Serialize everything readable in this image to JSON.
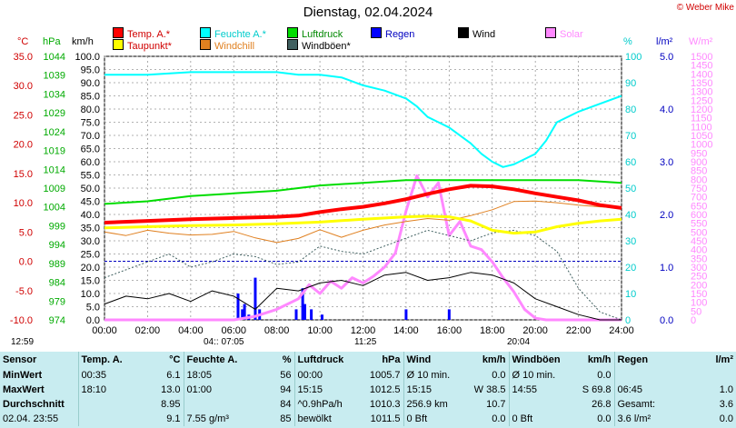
{
  "title": "Dienstag, 02.04.2024",
  "copyright": "© Weber Mike",
  "legend": [
    {
      "label": "Temp. A.*",
      "color": "#ff0000",
      "col": 0,
      "row": 0
    },
    {
      "label": "Feuchte A.*",
      "color": "#00ffff",
      "col": 1,
      "row": 0
    },
    {
      "label": "Luftdruck",
      "color": "#00dd00",
      "col": 2,
      "row": 0
    },
    {
      "label": "Regen",
      "color": "#0000ff",
      "col": 3,
      "row": 0
    },
    {
      "label": "Wind",
      "color": "#000000",
      "col": 4,
      "row": 0
    },
    {
      "label": "Solar",
      "color": "#ff88ff",
      "col": 5,
      "row": 0
    },
    {
      "label": "Taupunkt*",
      "color": "#ffff00",
      "col": 0,
      "row": 1
    },
    {
      "label": "Windchill",
      "color": "#e08020",
      "col": 1,
      "row": 1
    },
    {
      "label": "Windböen*",
      "color": "#406060",
      "col": 2,
      "row": 1
    }
  ],
  "units": {
    "temp": "°C",
    "press": "hPa",
    "wind": "km/h",
    "hum": "%",
    "rain": "l/m²",
    "solar": "W/m²"
  },
  "sun": {
    "left_time": "12:59",
    "rise_label": "04::  07:05",
    "noon_label": "11:25",
    "set_label": "20:04"
  },
  "chart_data": {
    "type": "line",
    "x_ticks": [
      "00:00",
      "02:00",
      "04:00",
      "06:00",
      "08:00",
      "10:00",
      "12:00",
      "14:00",
      "16:00",
      "18:00",
      "20:00",
      "22:00",
      "24:00"
    ],
    "axes": {
      "temp": {
        "min": -10.0,
        "max": 35.0,
        "step": 5.0,
        "ticks": [
          "-10.0",
          "-5.0",
          "0.0",
          "5.0",
          "10.0",
          "15.0",
          "20.0",
          "25.0",
          "30.0",
          "35.0"
        ]
      },
      "press": {
        "ticks": [
          "974",
          "979",
          "984",
          "989",
          "994",
          "999",
          "1004",
          "1009",
          "1014",
          "1019",
          "1024",
          "1029",
          "1034",
          "1039",
          "1044"
        ]
      },
      "wind": {
        "min": 0.0,
        "max": 100.0,
        "ticks": [
          "0.0",
          "5.0",
          "10.0",
          "15.0",
          "20.0",
          "25.0",
          "30.0",
          "35.0",
          "40.0",
          "45.0",
          "50.0",
          "55.0",
          "60.0",
          "65.0",
          "70.0",
          "75.0",
          "80.0",
          "85.0",
          "90.0",
          "95.0",
          "100.0"
        ]
      },
      "hum": {
        "min": 0,
        "max": 100,
        "ticks": [
          "0",
          "10",
          "20",
          "30",
          "40",
          "50",
          "60",
          "70",
          "80",
          "90",
          "100"
        ]
      },
      "rain": {
        "min": 0.0,
        "max": 5.0,
        "ticks": [
          "0.0",
          "1.0",
          "2.0",
          "3.0",
          "4.0",
          "5.0"
        ]
      },
      "solar": {
        "min": 0,
        "max": 1500,
        "ticks": [
          "0",
          "50",
          "100",
          "150",
          "200",
          "250",
          "300",
          "350",
          "400",
          "450",
          "500",
          "550",
          "600",
          "650",
          "700",
          "750",
          "800",
          "850",
          "900",
          "950",
          "1000",
          "1050",
          "1100",
          "1150",
          "1200",
          "1250",
          "1300",
          "1350",
          "1400",
          "1450",
          "1500"
        ]
      }
    },
    "series": [
      {
        "name": "Temp. A.*",
        "axis": "temp",
        "color": "#ff0000",
        "width": 4,
        "x": [
          0,
          2,
          4,
          6,
          8,
          9,
          10,
          11,
          12,
          13,
          14,
          15,
          16,
          17,
          18,
          19,
          20,
          21,
          22,
          23,
          24
        ],
        "y": [
          6.6,
          6.9,
          7.2,
          7.4,
          7.6,
          7.8,
          8.4,
          8.9,
          9.3,
          9.9,
          10.6,
          11.5,
          12.3,
          12.9,
          12.8,
          12.3,
          11.6,
          11.0,
          10.4,
          9.6,
          9.1
        ]
      },
      {
        "name": "Feuchte A.*",
        "axis": "hum",
        "color": "#00ffff",
        "width": 2,
        "x": [
          0,
          2,
          4,
          6,
          8,
          9,
          10,
          11,
          12,
          13,
          14,
          14.5,
          15,
          15.5,
          16,
          17,
          17.5,
          18,
          18.5,
          19,
          19.5,
          20,
          20.5,
          21,
          22,
          23,
          24
        ],
        "y": [
          93,
          93,
          94,
          94,
          94,
          93,
          93,
          92,
          89,
          87,
          84,
          81,
          77,
          75,
          73,
          67,
          63,
          60,
          58,
          59,
          61,
          63,
          68,
          75,
          79,
          82,
          85
        ]
      },
      {
        "name": "Luftdruck",
        "axis": "hum",
        "color": "#00dd00",
        "width": 2,
        "x": [
          0,
          2,
          4,
          6,
          8,
          10,
          12,
          14,
          15,
          16,
          18,
          20,
          22,
          24
        ],
        "y": [
          44,
          45,
          47,
          48,
          49,
          51,
          52,
          53,
          53,
          53,
          53,
          53,
          53,
          52
        ]
      },
      {
        "name": "Taupunkt*",
        "axis": "temp",
        "color": "#ffff00",
        "width": 3,
        "x": [
          0,
          2,
          4,
          6,
          8,
          10,
          12,
          14,
          15,
          16,
          17,
          18,
          19,
          20,
          21,
          22,
          23,
          24
        ],
        "y": [
          5.7,
          5.9,
          6.1,
          6.2,
          6.4,
          6.7,
          7.2,
          7.6,
          7.7,
          7.6,
          6.9,
          5.3,
          4.8,
          5.0,
          5.9,
          6.5,
          6.9,
          7.2
        ]
      },
      {
        "name": "Windchill",
        "axis": "temp",
        "color": "#e08020",
        "width": 1,
        "x": [
          0,
          1,
          2,
          3,
          4,
          5,
          6,
          7,
          8,
          9,
          10,
          11,
          12,
          13,
          14,
          15,
          16,
          17,
          18,
          19,
          20,
          21,
          22,
          23,
          24
        ],
        "y": [
          5.0,
          4.4,
          5.3,
          4.8,
          4.5,
          4.6,
          5.1,
          4.0,
          3.2,
          3.9,
          5.4,
          4.1,
          5.3,
          6.2,
          6.8,
          7.3,
          7.0,
          7.8,
          8.8,
          10.2,
          10.3,
          10.0,
          9.6,
          9.3,
          9.1
        ]
      },
      {
        "name": "Windböen*",
        "axis": "wind",
        "color": "#406060",
        "width": 1,
        "dash": true,
        "x": [
          0,
          1,
          2,
          3,
          4,
          5,
          6,
          7,
          8,
          9,
          10,
          11,
          12,
          13,
          14,
          15,
          16,
          17,
          18,
          19,
          20,
          21,
          22,
          23,
          24
        ],
        "y": [
          16,
          19,
          22,
          25,
          20,
          22,
          25,
          24,
          21,
          22,
          28,
          26,
          25,
          28,
          31,
          34,
          32,
          30,
          33,
          34,
          32,
          26,
          12,
          3,
          0
        ]
      },
      {
        "name": "Wind",
        "axis": "wind",
        "color": "#000000",
        "width": 1,
        "x": [
          0,
          1,
          2,
          3,
          4,
          5,
          6,
          7,
          8,
          9,
          10,
          11,
          12,
          13,
          14,
          15,
          16,
          17,
          18,
          19,
          20,
          21,
          22,
          23,
          24
        ],
        "y": [
          6,
          9,
          8,
          10,
          7,
          11,
          9,
          4,
          12,
          11,
          14,
          15,
          13,
          17,
          18,
          15,
          16,
          18,
          17,
          14,
          8,
          5,
          2,
          0,
          0
        ]
      },
      {
        "name": "Solar",
        "axis": "solar",
        "color": "#ff88ff",
        "width": 3,
        "x": [
          0,
          6,
          7,
          8,
          9,
          9.5,
          10,
          10.5,
          11,
          11.5,
          12,
          12.5,
          13,
          13.5,
          14,
          14.5,
          15,
          15.5,
          16,
          16.5,
          17,
          17.5,
          18,
          18.5,
          19,
          19.5,
          20,
          20.5,
          21,
          24
        ],
        "y": [
          0,
          0,
          20,
          60,
          120,
          200,
          150,
          220,
          180,
          240,
          210,
          250,
          300,
          380,
          620,
          820,
          700,
          780,
          480,
          560,
          420,
          400,
          330,
          240,
          160,
          60,
          10,
          0,
          0,
          0
        ]
      }
    ],
    "rain_bars": {
      "axis": "rain",
      "x": [
        6.2,
        6.4,
        6.5,
        6.7,
        7.0,
        7.2,
        8.9,
        9.2,
        9.3,
        9.6,
        10.1,
        14.0,
        16.0
      ],
      "y": [
        0.5,
        0.2,
        0.3,
        0.1,
        0.8,
        0.2,
        0.2,
        0.6,
        0.3,
        0.2,
        0.1,
        0.2,
        0.2
      ]
    },
    "zero_line_temp": 0.0
  },
  "stats": {
    "headers": [
      "Sensor",
      "Temp. A.",
      "°C",
      "Feuchte A.",
      "%",
      "Luftdruck",
      "hPa",
      "Wind",
      "km/h",
      "Windböen",
      "km/h",
      "Regen",
      "l/m²"
    ],
    "rows": [
      [
        "MinWert",
        "00:35",
        "6.1",
        "18:05",
        "56",
        "00:00",
        "1005.7",
        "Ø 10 min.",
        "0.0",
        "Ø 10 min.",
        "0.0",
        "",
        ""
      ],
      [
        "MaxWert",
        "18:10",
        "13.0",
        "01:00",
        "94",
        "15:15",
        "1012.5",
        "15:15",
        "W 38.5",
        "14:55",
        "S 69.8",
        "06:45",
        "1.0"
      ],
      [
        "Durchschnitt",
        "",
        "8.95",
        "",
        "84",
        "^0.9hPa/h",
        "1010.3",
        "256.9 km",
        "10.7",
        "",
        "26.8",
        "Gesamt:",
        "3.6"
      ],
      [
        "02.04.  23:55",
        "",
        "9.1",
        "7.55 g/m³",
        "85",
        "bewölkt",
        "1011.5",
        "0 Bft",
        "0.0",
        "0 Bft",
        "0.0",
        "3.6 l/m²",
        "0.0"
      ]
    ]
  }
}
